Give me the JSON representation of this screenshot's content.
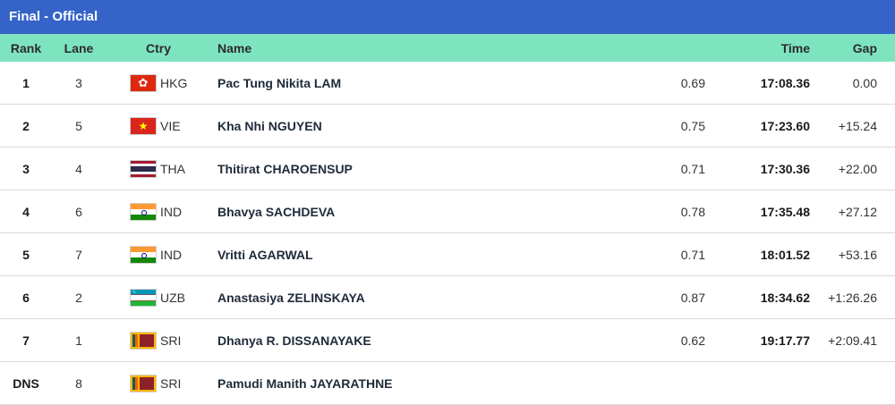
{
  "title": "Final - Official",
  "columns": {
    "rank": "Rank",
    "lane": "Lane",
    "ctry": "Ctry",
    "name": "Name",
    "time": "Time",
    "gap": "Gap"
  },
  "rows": [
    {
      "rank": "1",
      "lane": "3",
      "ctry": "HKG",
      "flag": "flag-hkg",
      "name": "Pac Tung Nikita LAM",
      "reaction": "0.69",
      "time": "17:08.36",
      "gap": "0.00"
    },
    {
      "rank": "2",
      "lane": "5",
      "ctry": "VIE",
      "flag": "flag-vie",
      "name": "Kha Nhi NGUYEN",
      "reaction": "0.75",
      "time": "17:23.60",
      "gap": "+15.24"
    },
    {
      "rank": "3",
      "lane": "4",
      "ctry": "THA",
      "flag": "flag-tha",
      "name": "Thitirat CHAROENSUP",
      "reaction": "0.71",
      "time": "17:30.36",
      "gap": "+22.00"
    },
    {
      "rank": "4",
      "lane": "6",
      "ctry": "IND",
      "flag": "flag-ind",
      "name": "Bhavya SACHDEVA",
      "reaction": "0.78",
      "time": "17:35.48",
      "gap": "+27.12"
    },
    {
      "rank": "5",
      "lane": "7",
      "ctry": "IND",
      "flag": "flag-ind",
      "name": "Vritti AGARWAL",
      "reaction": "0.71",
      "time": "18:01.52",
      "gap": "+53.16"
    },
    {
      "rank": "6",
      "lane": "2",
      "ctry": "UZB",
      "flag": "flag-uzb",
      "name": "Anastasiya ZELINSKAYA",
      "reaction": "0.87",
      "time": "18:34.62",
      "gap": "+1:26.26"
    },
    {
      "rank": "7",
      "lane": "1",
      "ctry": "SRI",
      "flag": "flag-sri",
      "name": "Dhanya R. DISSANAYAKE",
      "reaction": "0.62",
      "time": "19:17.77",
      "gap": "+2:09.41"
    },
    {
      "rank": "DNS",
      "lane": "8",
      "ctry": "SRI",
      "flag": "flag-sri",
      "name": "Pamudi Manith JAYARATHNE",
      "reaction": "",
      "time": "",
      "gap": ""
    }
  ],
  "colors": {
    "title_bar": "#3563c8",
    "header_bar": "#7ee4c0"
  }
}
